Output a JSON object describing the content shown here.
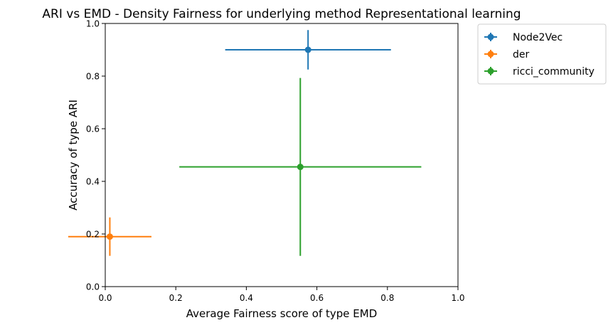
{
  "chart_data": {
    "type": "scatter",
    "title": "ARI vs EMD - Density Fairness for underlying method Representational learning",
    "xlabel": "Average Fairness score of type EMD",
    "ylabel": "Accuracy of type ARI",
    "xlim": [
      0.0,
      1.0
    ],
    "ylim": [
      0.0,
      1.0
    ],
    "xticks": [
      {
        "value": 0.0,
        "label": "0.0"
      },
      {
        "value": 0.2,
        "label": "0.2"
      },
      {
        "value": 0.4,
        "label": "0.4"
      },
      {
        "value": 0.6,
        "label": "0.6"
      },
      {
        "value": 0.8,
        "label": "0.8"
      },
      {
        "value": 1.0,
        "label": "1.0"
      }
    ],
    "yticks": [
      {
        "value": 0.0,
        "label": "0.0"
      },
      {
        "value": 0.2,
        "label": "0.2"
      },
      {
        "value": 0.4,
        "label": "0.4"
      },
      {
        "value": 0.6,
        "label": "0.6"
      },
      {
        "value": 0.8,
        "label": "0.8"
      },
      {
        "value": 1.0,
        "label": "1.0"
      }
    ],
    "grid": false,
    "legend_position": "outside-right-top",
    "series": [
      {
        "name": "Node2Vec",
        "color": "#1f77b4",
        "x": 0.575,
        "y": 0.9,
        "xerr": 0.235,
        "yerr": 0.075
      },
      {
        "name": "der",
        "color": "#ff7f0e",
        "x": 0.013,
        "y": 0.19,
        "xerr": 0.118,
        "yerr": 0.073
      },
      {
        "name": "ricci_community",
        "color": "#2ca02c",
        "x": 0.553,
        "y": 0.455,
        "xerr": 0.343,
        "yerr": 0.338
      }
    ]
  }
}
